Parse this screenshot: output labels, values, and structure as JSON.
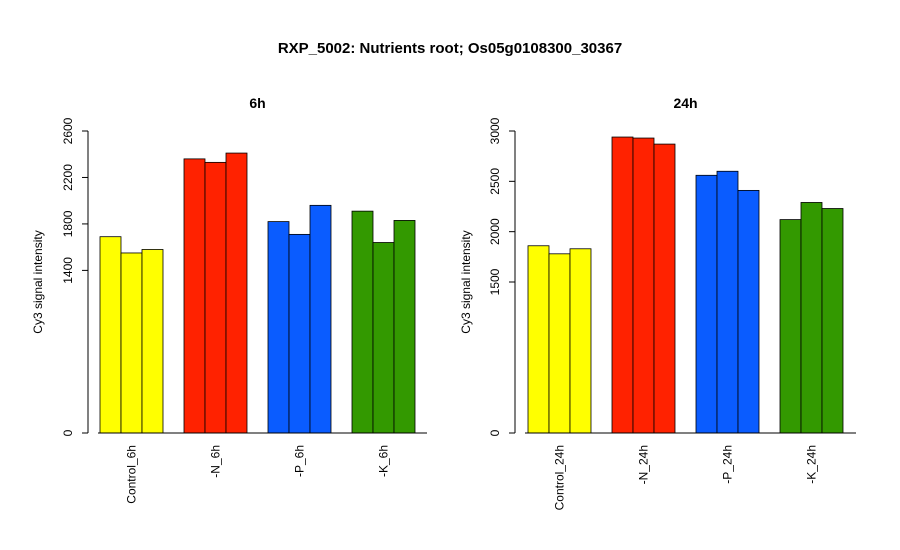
{
  "title": "RXP_5002: Nutrients root; Os05g0108300_30367",
  "colors": {
    "control": "#ffff00",
    "minus_n": "#ff2200",
    "minus_p": "#0a5cff",
    "minus_k": "#339900",
    "axis": "#000000",
    "background": "#ffffff"
  },
  "chart_data": [
    {
      "type": "bar",
      "title": "6h",
      "ylabel": "Cy3 signal intensity",
      "ylim": [
        0,
        2600
      ],
      "yticks": [
        0,
        1400,
        1800,
        2200,
        2600
      ],
      "grid": false,
      "legend": "none",
      "categories": [
        "Control_6h",
        "-N_6h",
        "-P_6h",
        "-K_6h"
      ],
      "group_colors": [
        "#ffff00",
        "#ff2200",
        "#0a5cff",
        "#339900"
      ],
      "series": [
        {
          "values": [
            1690,
            2360,
            1820,
            1910
          ]
        },
        {
          "values": [
            1550,
            2330,
            1710,
            1640
          ]
        },
        {
          "values": [
            1580,
            2410,
            1960,
            1830
          ]
        }
      ]
    },
    {
      "type": "bar",
      "title": "24h",
      "ylabel": "Cy3 signal intensity",
      "ylim": [
        0,
        3000
      ],
      "yticks": [
        0,
        1500,
        2000,
        2500,
        3000
      ],
      "grid": false,
      "legend": "none",
      "categories": [
        "Control_24h",
        "-N_24h",
        "-P_24h",
        "-K_24h"
      ],
      "group_colors": [
        "#ffff00",
        "#ff2200",
        "#0a5cff",
        "#339900"
      ],
      "series": [
        {
          "values": [
            1860,
            2940,
            2560,
            2120
          ]
        },
        {
          "values": [
            1780,
            2930,
            2600,
            2290
          ]
        },
        {
          "values": [
            1830,
            2870,
            2410,
            2230
          ]
        }
      ]
    }
  ]
}
